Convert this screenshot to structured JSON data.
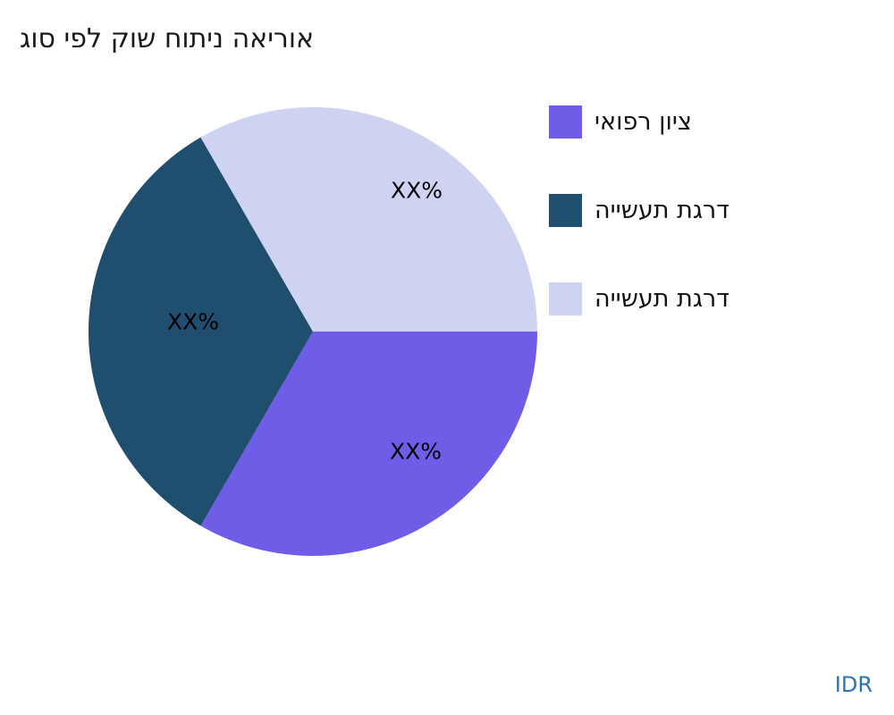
{
  "page": {
    "background": "#ffffff"
  },
  "footer": {
    "currency": "IDR",
    "color": "#2e74b5"
  },
  "legend": {
    "position": "right",
    "items": [
      {
        "label": "ציון רפואי",
        "color": "#6f5de8"
      },
      {
        "label": "דרגת תעשייה",
        "color": "#1f4e6f"
      },
      {
        "label": "דרגת תעשייה",
        "color": "#cfd3f2"
      }
    ]
  },
  "chart_data": {
    "type": "pie",
    "title": "אוריאה ניתוח שוק לפי סוג",
    "labels": [
      "ציון רפואי",
      "דרגת תעשייה",
      "דרגת תעשייה"
    ],
    "values": [
      33.33,
      33.33,
      33.34
    ],
    "value_display": [
      "XX%",
      "XX%",
      "XX%"
    ],
    "colors": [
      "#6f5de8",
      "#1f4e6f",
      "#cfd3f2"
    ],
    "legend_position": "right",
    "start_angle_deg": 0,
    "sweep_direction": "clockwise"
  }
}
